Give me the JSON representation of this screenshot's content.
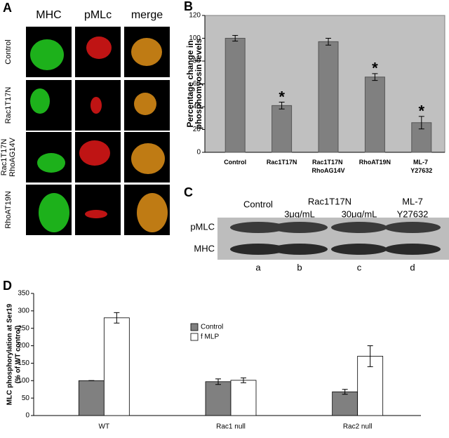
{
  "panel_a": {
    "label": "A",
    "columns": [
      "MHC",
      "pMLc",
      "merge"
    ],
    "rows": [
      [
        "Control"
      ],
      [
        "Rac1T17N"
      ],
      [
        "Rac1T17N",
        "RhoAG14V"
      ],
      [
        "RhoAT19N"
      ]
    ]
  },
  "panel_c": {
    "label": "C",
    "lanes": [
      "Control",
      "Rac1T17N",
      "ML-7"
    ],
    "doses": [
      "3μg/mL",
      "30μg/mL",
      "Y27632"
    ],
    "rows": [
      "pMLC",
      "MHC"
    ],
    "lane_letters": [
      "a",
      "b",
      "c",
      "d"
    ]
  },
  "chart_data": [
    {
      "type": "bar",
      "panel": "B",
      "ylabel": [
        "Percentage change in",
        "phosphomyosin levels"
      ],
      "categories": [
        "Control",
        "Rac1T17N",
        "Rac1T17N RhoAG14V",
        "RhoAT19N",
        "ML-7 Y27632"
      ],
      "values": [
        100,
        41,
        97,
        66,
        26
      ],
      "errors": [
        2.5,
        3,
        3,
        3,
        5.5
      ],
      "color": "#808080",
      "background": "#c0c0c0",
      "annotations": [
        {
          "category": "Rac1T17N",
          "text": "*"
        },
        {
          "category": "RhoAT19N",
          "text": "*"
        },
        {
          "category": "ML-7 Y27632",
          "text": "*"
        }
      ],
      "ylim": [
        0,
        120
      ],
      "yticks": [
        0,
        20,
        40,
        60,
        80,
        100,
        120
      ]
    },
    {
      "type": "grouped_bar",
      "panel": "D",
      "ylabel": [
        "MLC phosphorylation at Ser19",
        "(% of WT control)"
      ],
      "categories": [
        "WT",
        "Rac1 null",
        "Rac2 null"
      ],
      "series": [
        {
          "name": "Control",
          "color": "#808080",
          "values": [
            100,
            97,
            68
          ],
          "errors": [
            0,
            8,
            7
          ]
        },
        {
          "name": "f MLP",
          "color": "#ffffff",
          "values": [
            280,
            101,
            170
          ],
          "errors": [
            15,
            7,
            30
          ]
        }
      ],
      "ylim": [
        0,
        350
      ],
      "yticks": [
        0,
        50,
        100,
        150,
        200,
        250,
        300,
        350
      ]
    }
  ]
}
